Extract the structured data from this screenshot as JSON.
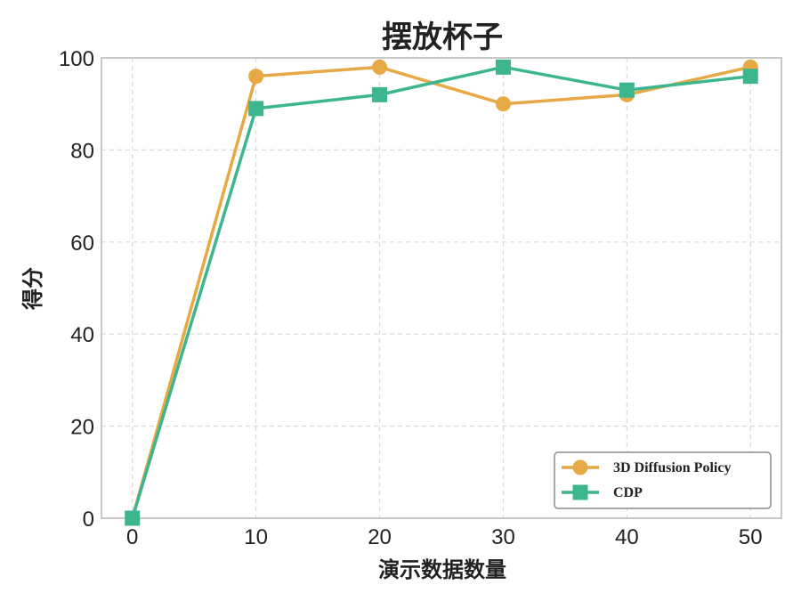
{
  "chart_data": {
    "type": "line",
    "title": "摆放杯子",
    "xlabel": "演示数据数量",
    "ylabel": "得分",
    "x": [
      0,
      10,
      20,
      30,
      40,
      50
    ],
    "xticks": [
      0,
      10,
      20,
      30,
      40,
      50
    ],
    "yticks": [
      0,
      20,
      40,
      60,
      80,
      100
    ],
    "xlim": [
      -2.5,
      52.5
    ],
    "ylim": [
      0,
      100
    ],
    "grid": true,
    "legend_position": "bottom-right",
    "series": [
      {
        "name": "3D Diffusion Policy",
        "marker": "circle",
        "color": "#e6a945",
        "values": [
          0,
          96,
          98,
          90,
          92,
          98
        ]
      },
      {
        "name": "CDP",
        "marker": "square",
        "color": "#3db690",
        "values": [
          0,
          89,
          92,
          98,
          93,
          96
        ]
      }
    ]
  }
}
